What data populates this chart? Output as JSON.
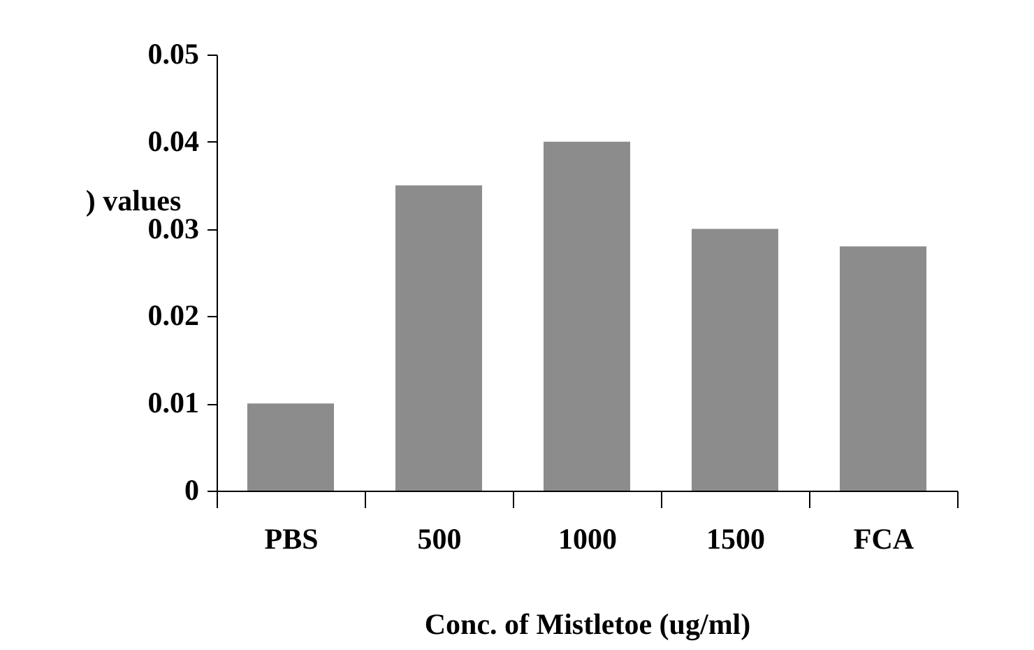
{
  "chart_data": {
    "type": "bar",
    "xlabel": "Conc. of Mistletoe (ug/ml)",
    "ylabel": ") values",
    "categories": [
      "PBS",
      "500",
      "1000",
      "1500",
      "FCA"
    ],
    "values": [
      0.01,
      0.035,
      0.04,
      0.03,
      0.028
    ],
    "color": "#8c8c8c",
    "ylim": [
      0,
      0.05
    ],
    "yticks": [
      0,
      0.01,
      0.02,
      0.03,
      0.04,
      0.05
    ],
    "grid": false
  }
}
